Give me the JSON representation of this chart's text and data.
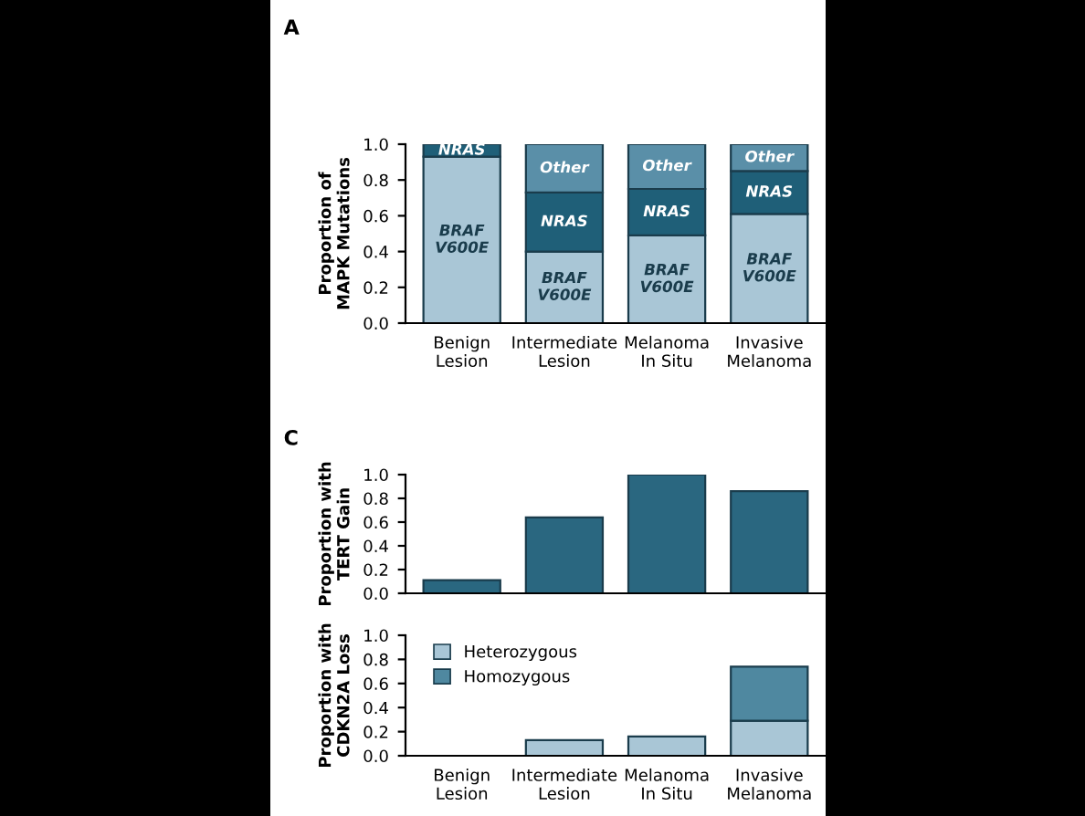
{
  "chart_data": [
    {
      "type": "bar",
      "stacked": true,
      "annotations": [
        "A"
      ],
      "ylabel": "Proportion of\nMAPK Mutations",
      "categories": [
        "Benign\nLesion",
        "Intermediate\nLesion",
        "Melanoma\nIn Situ",
        "Invasive\nMelanoma"
      ],
      "ylim": [
        0,
        1.0
      ],
      "yticks": [
        {
          "value": 0,
          "label": "0.0"
        },
        {
          "value": 0.2,
          "label": "0.2"
        },
        {
          "value": 0.4,
          "label": "0.4"
        },
        {
          "value": 0.6,
          "label": "0.6"
        },
        {
          "value": 0.8,
          "label": "0.8"
        },
        {
          "value": 1.0,
          "label": "1.0"
        }
      ],
      "grid": false,
      "legend": false,
      "series": [
        {
          "name": "BRAF\nV600E",
          "color": "#a9c6d6",
          "values": [
            0.93,
            0.4,
            0.49,
            0.61
          ]
        },
        {
          "name": "NRAS",
          "color": "#1f5f78",
          "values": [
            0.07,
            0.33,
            0.26,
            0.24
          ]
        },
        {
          "name": "Other",
          "color": "#5a8fa8",
          "values": [
            0,
            0.27,
            0.25,
            0.15
          ]
        }
      ]
    },
    {
      "type": "bar",
      "annotations": [
        "C"
      ],
      "ylabel": "Proportion with\nTERT Gain",
      "categories": [
        null,
        null,
        null,
        null
      ],
      "ylim": [
        0,
        1.0
      ],
      "yticks": [
        {
          "value": 0,
          "label": "0.0"
        },
        {
          "value": 0.2,
          "label": "0.2"
        },
        {
          "value": 0.4,
          "label": "0.4"
        },
        {
          "value": 0.6,
          "label": "0.6"
        },
        {
          "value": 0.8,
          "label": "0.8"
        },
        {
          "value": 1.0,
          "label": "1.0"
        }
      ],
      "grid": false,
      "legend": false,
      "series": [
        {
          "color": "#2a6780",
          "values": [
            0.11,
            0.64,
            1.0,
            0.86
          ]
        }
      ]
    },
    {
      "type": "bar",
      "stacked": true,
      "ylabel": "Proportion with\nCDKN2A Loss",
      "categories": [
        "Benign\nLesion",
        "Intermediate\nLesion",
        "Melanoma\nIn Situ",
        "Invasive\nMelanoma"
      ],
      "ylim": [
        0,
        1.0
      ],
      "yticks": [
        {
          "value": 0,
          "label": "0.0"
        },
        {
          "value": 0.2,
          "label": "0.2"
        },
        {
          "value": 0.4,
          "label": "0.4"
        },
        {
          "value": 0.6,
          "label": "0.6"
        },
        {
          "value": 0.8,
          "label": "0.8"
        },
        {
          "value": 1.0,
          "label": "1.0"
        }
      ],
      "grid": false,
      "legend": "top left",
      "series": [
        {
          "name": "Heterozygous",
          "color": "#a9c6d6",
          "values": [
            0,
            0.13,
            0.16,
            0.29
          ]
        },
        {
          "name": "Homozygous",
          "color": "#4f88a0",
          "values": [
            0,
            0,
            0,
            0.45
          ]
        }
      ]
    }
  ]
}
